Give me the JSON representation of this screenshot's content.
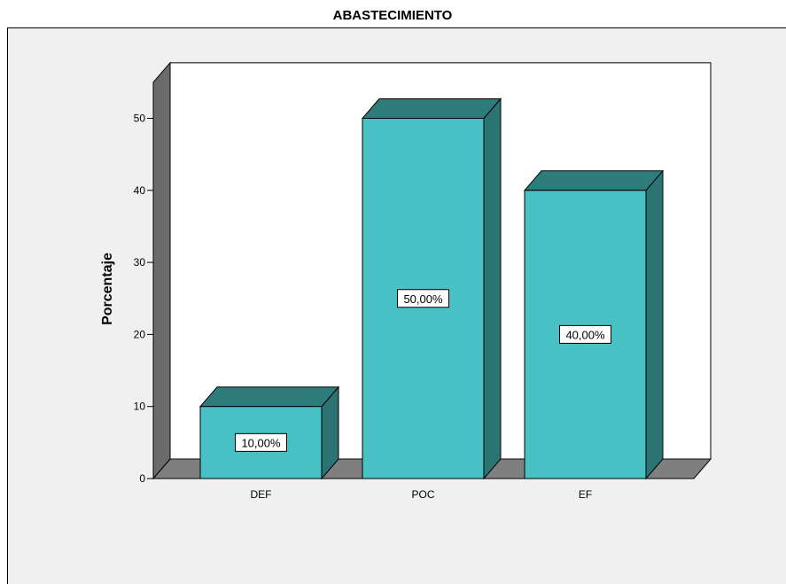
{
  "chart_data": {
    "type": "bar",
    "title": "ABASTECIMIENTO",
    "xlabel": "",
    "ylabel": "Porcentaje",
    "categories": [
      "DEF",
      "POC",
      "EF"
    ],
    "values": [
      10,
      50,
      40
    ],
    "data_labels": [
      "10,00%",
      "50,00%",
      "40,00%"
    ],
    "ylim": [
      0,
      55
    ],
    "yticks": [
      0,
      10,
      20,
      30,
      40,
      50
    ],
    "grid": false,
    "legend": "none",
    "style": "3d",
    "colors": {
      "bar_front": "#47c1c4",
      "bar_top": "#2e7c7c",
      "bar_side": "#2c7374",
      "floor": "#7f7f7f",
      "wall_side": "#6b6b6b",
      "plot_background": "#ffffff",
      "panel_background": "#f0f0f0"
    }
  }
}
